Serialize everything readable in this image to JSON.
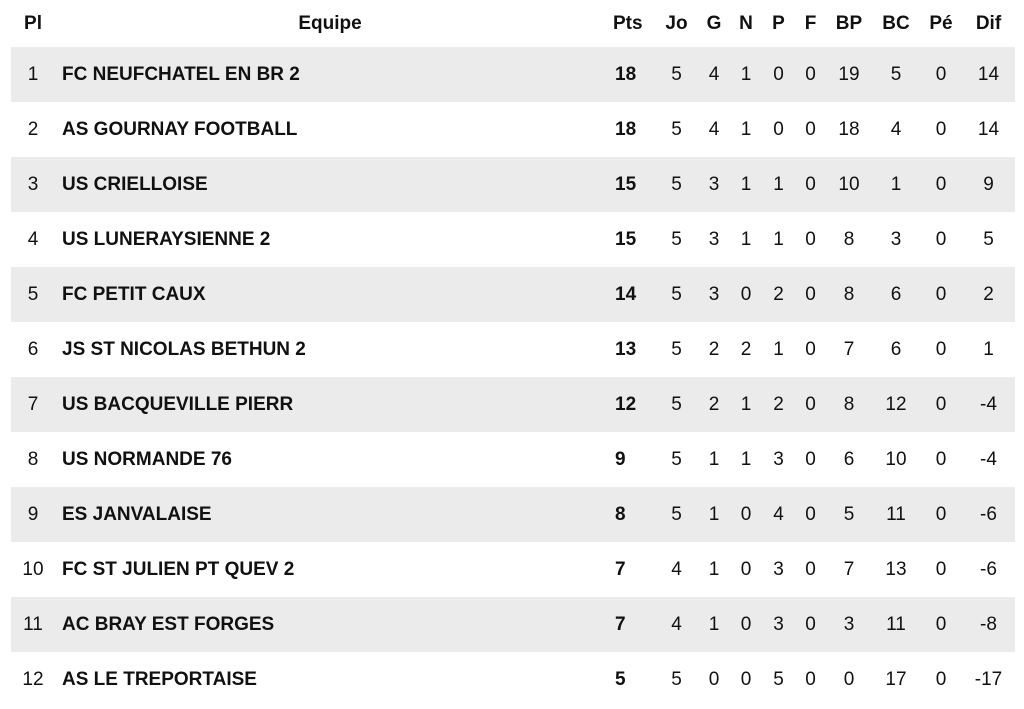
{
  "headers": [
    "Pl",
    "Equipe",
    "Pts",
    "Jo",
    "G",
    "N",
    "P",
    "F",
    "BP",
    "BC",
    "Pé",
    "Dif"
  ],
  "rows": [
    [
      "1",
      "FC NEUFCHATEL EN BR 2",
      "18",
      "5",
      "4",
      "1",
      "0",
      "0",
      "19",
      "5",
      "0",
      "14"
    ],
    [
      "2",
      "AS GOURNAY FOOTBALL",
      "18",
      "5",
      "4",
      "1",
      "0",
      "0",
      "18",
      "4",
      "0",
      "14"
    ],
    [
      "3",
      "US CRIELLOISE",
      "15",
      "5",
      "3",
      "1",
      "1",
      "0",
      "10",
      "1",
      "0",
      "9"
    ],
    [
      "4",
      "US LUNERAYSIENNE 2",
      "15",
      "5",
      "3",
      "1",
      "1",
      "0",
      "8",
      "3",
      "0",
      "5"
    ],
    [
      "5",
      "FC PETIT CAUX",
      "14",
      "5",
      "3",
      "0",
      "2",
      "0",
      "8",
      "6",
      "0",
      "2"
    ],
    [
      "6",
      "JS ST NICOLAS BETHUN 2",
      "13",
      "5",
      "2",
      "2",
      "1",
      "0",
      "7",
      "6",
      "0",
      "1"
    ],
    [
      "7",
      "US BACQUEVILLE PIERR",
      "12",
      "5",
      "2",
      "1",
      "2",
      "0",
      "8",
      "12",
      "0",
      "-4"
    ],
    [
      "8",
      "US NORMANDE 76",
      "9",
      "5",
      "1",
      "1",
      "3",
      "0",
      "6",
      "10",
      "0",
      "-4"
    ],
    [
      "9",
      "ES JANVALAISE",
      "8",
      "5",
      "1",
      "0",
      "4",
      "0",
      "5",
      "11",
      "0",
      "-6"
    ],
    [
      "10",
      "FC ST JULIEN PT QUEV 2",
      "7",
      "4",
      "1",
      "0",
      "3",
      "0",
      "7",
      "13",
      "0",
      "-6"
    ],
    [
      "11",
      "AC BRAY EST FORGES",
      "7",
      "4",
      "1",
      "0",
      "3",
      "0",
      "3",
      "11",
      "0",
      "-8"
    ],
    [
      "12",
      "AS LE TREPORTAISE",
      "5",
      "5",
      "0",
      "0",
      "5",
      "0",
      "0",
      "17",
      "0",
      "-17"
    ]
  ]
}
